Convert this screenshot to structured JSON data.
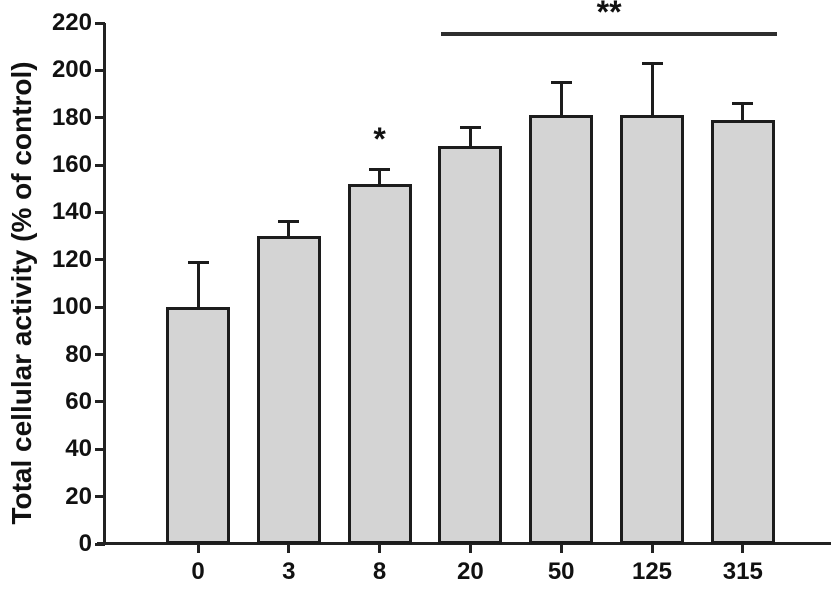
{
  "chart_data": {
    "type": "bar",
    "title": "",
    "xlabel": "",
    "ylabel": "Total cellular activity (% of control)",
    "categories": [
      "0",
      "3",
      "8",
      "20",
      "50",
      "125",
      "315"
    ],
    "series": [
      {
        "name": "Total cellular activity",
        "values": [
          100,
          130,
          152,
          168,
          181,
          181,
          179
        ],
        "errors_upper": [
          19,
          6,
          6,
          8,
          14,
          22,
          7
        ]
      }
    ],
    "ylim": [
      0,
      220
    ],
    "ytick_interval": 20,
    "ytick_labels": [
      "0",
      "20",
      "40",
      "60",
      "80",
      "100",
      "120",
      "140",
      "160",
      "180",
      "200",
      "220"
    ],
    "grid": false,
    "legend_position": "none",
    "bar_fill_color": "#d4d4d4",
    "bar_border_color": "#1c1c1c",
    "annotations": [
      {
        "symbol": "*",
        "bar_index": 2
      },
      {
        "symbol": "**",
        "bar_index_start": 3,
        "bar_index_end": 6,
        "style": "line-over-bars"
      }
    ]
  }
}
